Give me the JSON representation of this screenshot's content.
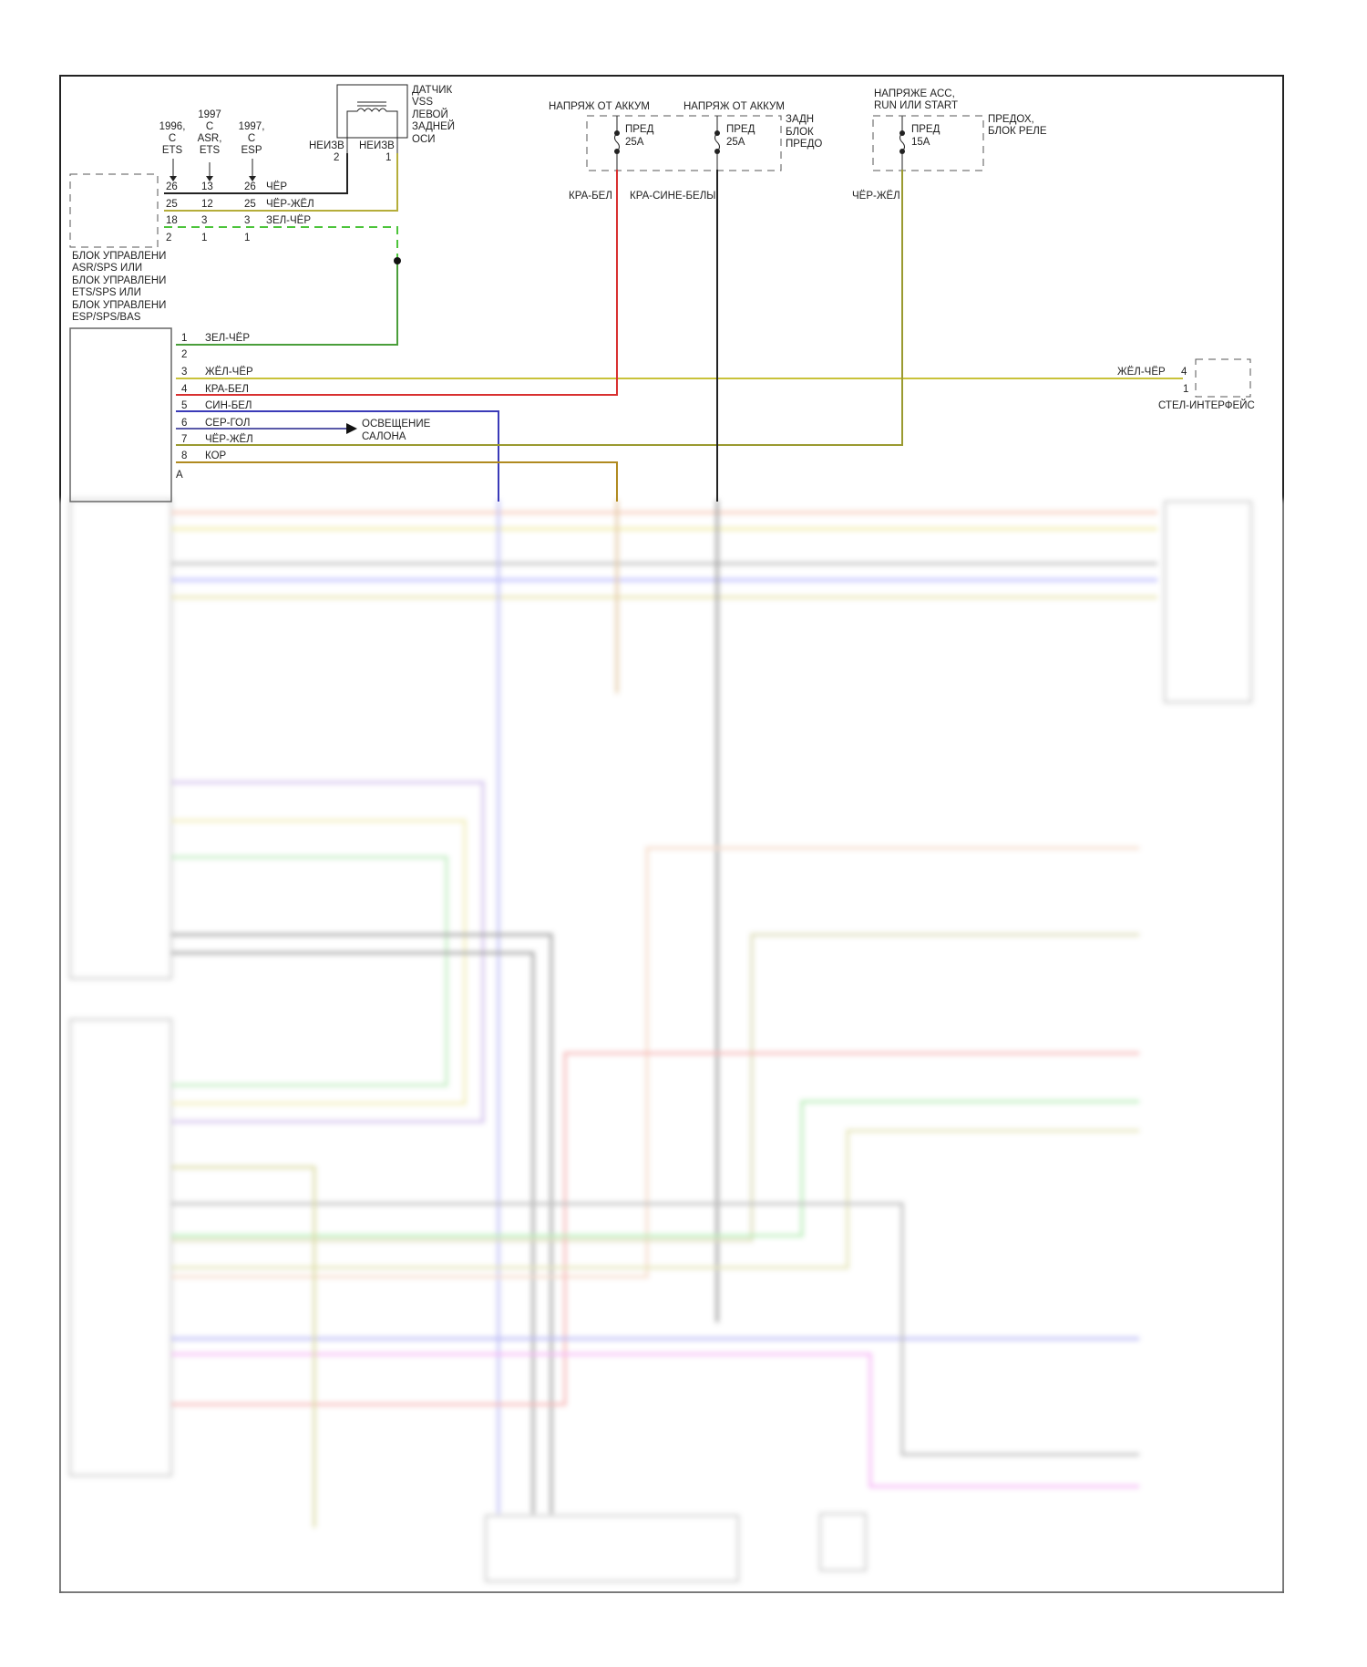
{
  "module_a": {
    "label_lines": [
      "БЛОК УПРАВЛЕНИ",
      "ASR/SPS ИЛИ",
      "БЛОК УПРАВЛЕНИ",
      "ETS/SPS ИЛИ",
      "БЛОК УПРАВЛЕНИ",
      "ESP/SPS/BAS"
    ],
    "variants": [
      {
        "lines": [
          "1996,",
          "С",
          "ETS"
        ],
        "pins": [
          "26",
          "25",
          "18",
          "2"
        ]
      },
      {
        "lines": [
          "1997",
          "С",
          "ASR,",
          "ETS"
        ],
        "pins": [
          "13",
          "12",
          "3",
          "1"
        ]
      },
      {
        "lines": [
          "1997,",
          "С",
          "ESP"
        ],
        "pins": [
          "26",
          "25",
          "3",
          "1"
        ]
      }
    ],
    "wires": [
      {
        "label": "ЧЁР",
        "color": "#222222"
      },
      {
        "label": "ЧЁР-ЖЁЛ",
        "color": "#b5ad3a"
      },
      {
        "label": "ЗЕЛ-ЧЁР",
        "color": "#4cc43a"
      }
    ]
  },
  "sensor": {
    "label_lines": [
      "ДАТЧИК",
      "VSS",
      "ЛЕВОЙ",
      "ЗАДНЕЙ",
      "ОСИ"
    ],
    "pins": [
      {
        "name": "НЕИЗВ",
        "num": "2"
      },
      {
        "name": "НЕИЗВ",
        "num": "1"
      }
    ]
  },
  "fuse_box_rear": {
    "label_lines": [
      "ЗАДН",
      "БЛОК",
      "ПРЕДО"
    ],
    "fuses": [
      {
        "supply": "НАПРЯЖ ОТ АККУМ",
        "name": "ПРЕД",
        "rating": "25A",
        "wire": "КРА-БЕЛ",
        "color": "#e03030"
      },
      {
        "supply": "НАПРЯЖ ОТ АККУМ",
        "name": "ПРЕД",
        "rating": "25A",
        "wire": "КРА-СИНЕ-БЕЛЫ",
        "color": "#222222"
      }
    ]
  },
  "fuse_box_relay": {
    "label_lines": [
      "ПРЕДОХ,",
      "БЛОК РЕЛЕ"
    ],
    "supply_lines": [
      "НАПРЯЖЕ ACC,",
      "RUN ИЛИ START"
    ],
    "fuse": {
      "name": "ПРЕД",
      "rating": "15A",
      "wire": "ЧЁР-ЖЁЛ",
      "color": "#b5ad3a"
    }
  },
  "module_b": {
    "pins": [
      {
        "num": "1",
        "wire": "ЗЕЛ-ЧЁР",
        "color": "#4a9e3a"
      },
      {
        "num": "2",
        "wire": "",
        "color": ""
      },
      {
        "num": "3",
        "wire": "ЖЁЛ-ЧЁР",
        "color": "#c9c23a"
      },
      {
        "num": "4",
        "wire": "КРА-БЕЛ",
        "color": "#d83030"
      },
      {
        "num": "5",
        "wire": "СИН-БЕЛ",
        "color": "#3a3ab8"
      },
      {
        "num": "6",
        "wire": "СЕР-ГОЛ",
        "color": "#5a5aa8"
      },
      {
        "num": "7",
        "wire": "ЧЁР-ЖЁЛ",
        "color": "#9a9a30"
      },
      {
        "num": "8",
        "wire": "КОР",
        "color": "#b08a20"
      }
    ],
    "connector": "A",
    "interior_light": [
      "ОСВЕЩЕНИЕ",
      "САЛОНА"
    ]
  },
  "tel_interface": {
    "label": "СТЕЛ-ИНТЕРФЕЙС",
    "wire": "ЖЁЛ-ЧЁР",
    "pins": [
      "4",
      "1"
    ]
  }
}
